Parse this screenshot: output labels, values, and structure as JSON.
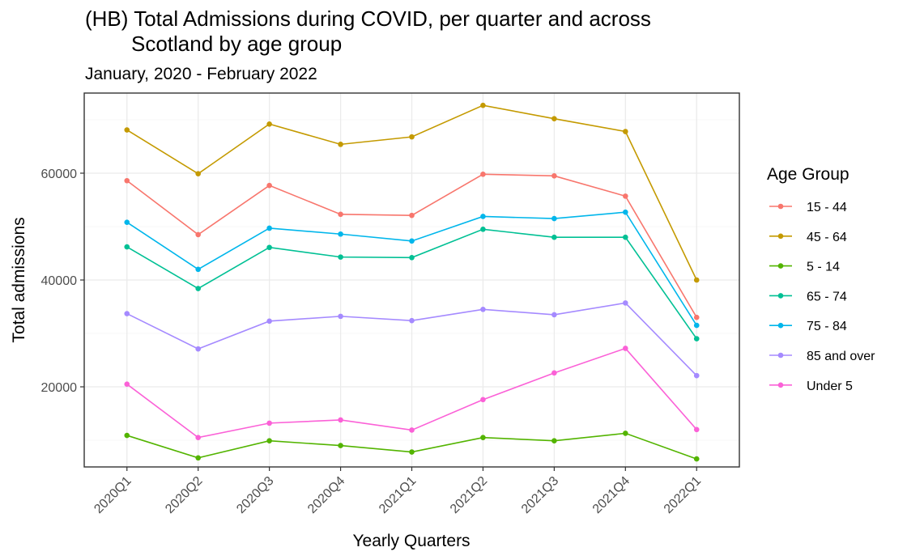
{
  "chart_data": {
    "type": "line",
    "title_line1": "(HB) Total Admissions during COVID, per quarter and across",
    "title_line2": "Scotland by age group",
    "subtitle": "January, 2020 - February 2022",
    "xlabel": "Yearly Quarters",
    "ylabel": "Total admissions",
    "categories": [
      "2020Q1",
      "2020Q2",
      "2020Q3",
      "2020Q4",
      "2021Q1",
      "2021Q2",
      "2021Q3",
      "2021Q4",
      "2022Q1"
    ],
    "ylim": [
      5000,
      75000
    ],
    "yticks": [
      20000,
      40000,
      60000
    ],
    "ytick_labels": [
      "20000",
      "40000",
      "60000"
    ],
    "grid": true,
    "legend_title": "Age Group",
    "legend_position": "right",
    "series": [
      {
        "name": "15 - 44",
        "color": "#F8766D",
        "values": [
          58600,
          48500,
          57700,
          52300,
          52100,
          59800,
          59500,
          55700,
          33000
        ]
      },
      {
        "name": "45 - 64",
        "color": "#C49A00",
        "values": [
          68100,
          59900,
          69200,
          65400,
          66800,
          72700,
          70200,
          67800,
          40000
        ]
      },
      {
        "name": "5 - 14",
        "color": "#53B400",
        "values": [
          10900,
          6700,
          9900,
          9000,
          7800,
          10500,
          9900,
          11300,
          6500
        ]
      },
      {
        "name": "65 - 74",
        "color": "#00C094",
        "values": [
          46200,
          38400,
          46100,
          44300,
          44200,
          49500,
          48000,
          48000,
          29000
        ]
      },
      {
        "name": "75 - 84",
        "color": "#00B6EB",
        "values": [
          50800,
          42000,
          49700,
          48600,
          47300,
          51900,
          51500,
          52700,
          31500
        ]
      },
      {
        "name": "85 and over",
        "color": "#A58AFF",
        "values": [
          33700,
          27100,
          32300,
          33200,
          32400,
          34500,
          33500,
          35700,
          22100
        ]
      },
      {
        "name": "Under 5",
        "color": "#FB61D7",
        "values": [
          20500,
          10500,
          13200,
          13800,
          11900,
          17600,
          22600,
          27200,
          12000
        ]
      }
    ]
  }
}
